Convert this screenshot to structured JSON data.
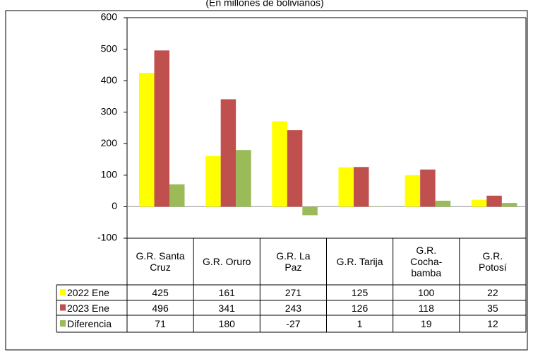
{
  "chart_data": {
    "type": "bar",
    "subtitle": "(En millones de bolivianos)",
    "categories": [
      "G.R. Santa\nCruz",
      "G.R. Oruro",
      "G.R. La\nPaz",
      "G.R. Tarija",
      "G.R.\nCocha-\nbamba",
      "G.R.\nPotosí"
    ],
    "series": [
      {
        "name": "2022 Ene",
        "color": "#ffff00",
        "values": [
          425,
          161,
          271,
          125,
          100,
          22
        ]
      },
      {
        "name": "2023 Ene",
        "color": "#c0504d",
        "values": [
          496,
          341,
          243,
          126,
          118,
          35
        ]
      },
      {
        "name": "Diferencia",
        "color": "#9bbb59",
        "values": [
          71,
          180,
          -27,
          1,
          19,
          12
        ]
      }
    ],
    "ylim": [
      -100,
      600
    ],
    "yticks": [
      -100,
      0,
      100,
      200,
      300,
      400,
      500,
      600
    ]
  }
}
